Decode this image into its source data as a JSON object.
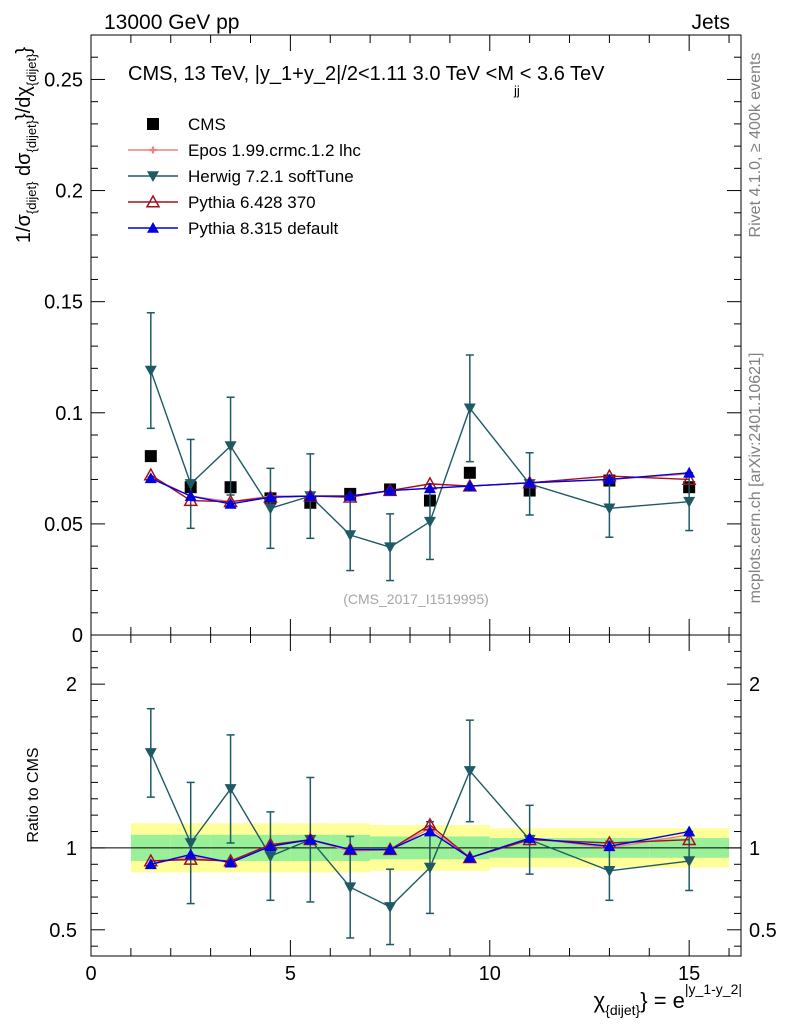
{
  "header": {
    "left": "13000 GeV pp",
    "right": "Jets"
  },
  "side_labels": {
    "rivet": "Rivet 4.1.0, ≥ 400k events",
    "mcplots": "mcplots.cern.ch [arXiv:2401.10621]"
  },
  "chart_data": [
    {
      "type": "line",
      "panel": "main",
      "title": "CMS, 13 TeV, |y_1+y_2|/2<1.11 3.0 TeV <M",
      "title_subscript": "jj",
      "title_suffix": "< 3.6 TeV",
      "ylabel": "1/σ_{dijet} dσ_{dijet}/dχ_{dijet}",
      "ylabel_parts": [
        "1/σ",
        "{dijet}",
        " dσ",
        "{dijet}",
        "}/dχ",
        "{dijet}",
        "}"
      ],
      "xlim": [
        0,
        16.3
      ],
      "ylim": [
        0,
        0.27
      ],
      "yticks": [
        0,
        0.05,
        0.1,
        0.15,
        0.2,
        0.25
      ],
      "ytick_labels": [
        "0",
        "0.05",
        "0.1",
        "0.15",
        "0.2",
        "0.25"
      ],
      "watermark": "(CMS_2017_I1519995)",
      "x": [
        1.5,
        2.5,
        3.5,
        4.5,
        5.5,
        6.5,
        7.5,
        8.5,
        9.5,
        11,
        13,
        15
      ],
      "series": [
        {
          "name": "CMS",
          "color": "#000000",
          "marker": "square",
          "line": false,
          "values": [
            0.0805,
            0.0665,
            0.0665,
            0.0615,
            0.0595,
            0.0635,
            0.0655,
            0.0605,
            0.073,
            0.065,
            0.0695,
            0.0665
          ]
        },
        {
          "name": "Epos 1.99.crmc.1.2 lhc",
          "color": "#f08080",
          "marker": "cross",
          "line": true,
          "values": [
            0.071,
            0.0625,
            0.06,
            0.0625,
            0.0625,
            0.0625,
            0.065,
            0.066,
            0.067,
            0.0685,
            0.07,
            0.0725
          ]
        },
        {
          "name": "Herwig 7.2.1 softTune",
          "color": "#1e5a64",
          "marker": "triangle-down",
          "line": true,
          "values": [
            0.119,
            0.068,
            0.085,
            0.057,
            0.0625,
            0.045,
            0.0395,
            0.051,
            0.102,
            0.068,
            0.057,
            0.06
          ],
          "err": [
            0.026,
            0.02,
            0.022,
            0.018,
            0.019,
            0.016,
            0.015,
            0.017,
            0.024,
            0.014,
            0.013,
            0.013
          ]
        },
        {
          "name": "Pythia 6.428 370",
          "color": "#a01020",
          "marker": "triangle-up-open",
          "line": true,
          "values": [
            0.072,
            0.0605,
            0.06,
            0.062,
            0.0625,
            0.062,
            0.065,
            0.068,
            0.067,
            0.0685,
            0.0715,
            0.07
          ]
        },
        {
          "name": "Pythia 8.315 default",
          "color": "#0000e0",
          "marker": "triangle-up",
          "line": true,
          "values": [
            0.0705,
            0.0625,
            0.059,
            0.062,
            0.0625,
            0.0625,
            0.065,
            0.066,
            0.067,
            0.0685,
            0.07,
            0.073
          ]
        }
      ]
    },
    {
      "type": "line",
      "panel": "ratio",
      "ylabel": "Ratio to CMS",
      "xlabel": "χ_{dijet} = e^{|y_1-y_2|}",
      "xlabel_parts": [
        "χ",
        "{dijet}",
        "} = e",
        "|y_1-y_2|"
      ],
      "xlim": [
        0,
        16.3
      ],
      "ylim": [
        0.34,
        2.3
      ],
      "xticks": [
        0,
        5,
        10,
        15
      ],
      "xtick_labels": [
        "0",
        "5",
        "10",
        "15"
      ],
      "yticks": [
        0.5,
        1,
        2
      ],
      "ytick_labels": [
        "0.5",
        "1",
        "2"
      ],
      "band_edges": [
        1,
        2,
        3,
        4,
        5,
        6,
        7,
        8,
        9,
        10,
        12,
        14,
        16
      ],
      "band_yellow": [
        0.15,
        0.15,
        0.15,
        0.15,
        0.15,
        0.15,
        0.14,
        0.14,
        0.14,
        0.12,
        0.12,
        0.12
      ],
      "band_green": [
        0.08,
        0.08,
        0.08,
        0.08,
        0.08,
        0.08,
        0.07,
        0.07,
        0.07,
        0.06,
        0.06,
        0.06
      ],
      "x": [
        1.5,
        2.5,
        3.5,
        4.5,
        5.5,
        6.5,
        7.5,
        8.5,
        9.5,
        11,
        13,
        15
      ],
      "series": [
        {
          "name": "Epos 1.99.crmc.1.2 lhc",
          "color": "#f08080",
          "marker": "cross",
          "line": true,
          "values": [
            0.9,
            0.95,
            0.91,
            1.02,
            1.05,
            0.98,
            0.99,
            1.12,
            0.94,
            1.06,
            1.0,
            1.08
          ]
        },
        {
          "name": "Herwig 7.2.1 softTune",
          "color": "#1e5a64",
          "marker": "triangle-down",
          "line": true,
          "values": [
            1.58,
            1.03,
            1.36,
            0.95,
            1.05,
            0.76,
            0.64,
            0.88,
            1.47,
            1.05,
            0.86,
            0.92
          ],
          "err": [
            0.27,
            0.37,
            0.33,
            0.27,
            0.38,
            0.31,
            0.23,
            0.28,
            0.31,
            0.21,
            0.18,
            0.18
          ]
        },
        {
          "name": "Pythia 6.428 370",
          "color": "#a01020",
          "marker": "triangle-up-open",
          "line": true,
          "values": [
            0.92,
            0.93,
            0.92,
            1.02,
            1.05,
            0.99,
            0.99,
            1.14,
            0.94,
            1.05,
            1.03,
            1.05
          ]
        },
        {
          "name": "Pythia 8.315 default",
          "color": "#0000e0",
          "marker": "triangle-up",
          "line": true,
          "values": [
            0.9,
            0.96,
            0.91,
            1.01,
            1.05,
            0.99,
            0.99,
            1.1,
            0.94,
            1.06,
            1.01,
            1.1
          ]
        }
      ]
    }
  ]
}
